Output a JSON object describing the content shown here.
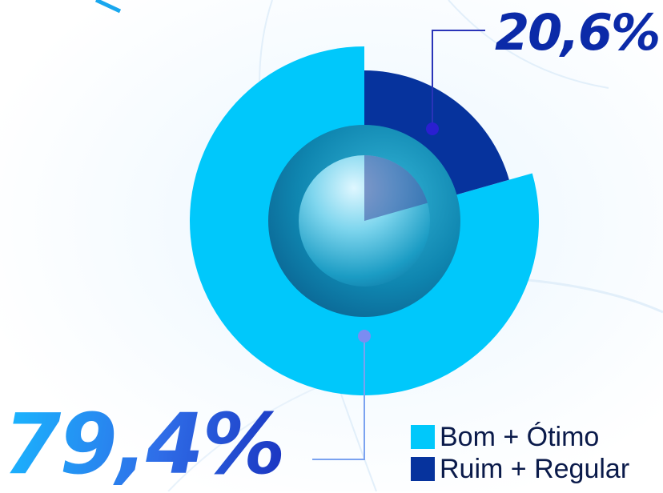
{
  "chart_data": {
    "type": "pie",
    "labels": [
      "Bom + Ótimo",
      "Ruim + Regular"
    ],
    "values": [
      79.4,
      20.6
    ],
    "value_labels": [
      "79,4%",
      "20,6%"
    ],
    "colors": [
      "#00c8fb",
      "#06339d"
    ],
    "legend_position": "bottom-right"
  }
}
